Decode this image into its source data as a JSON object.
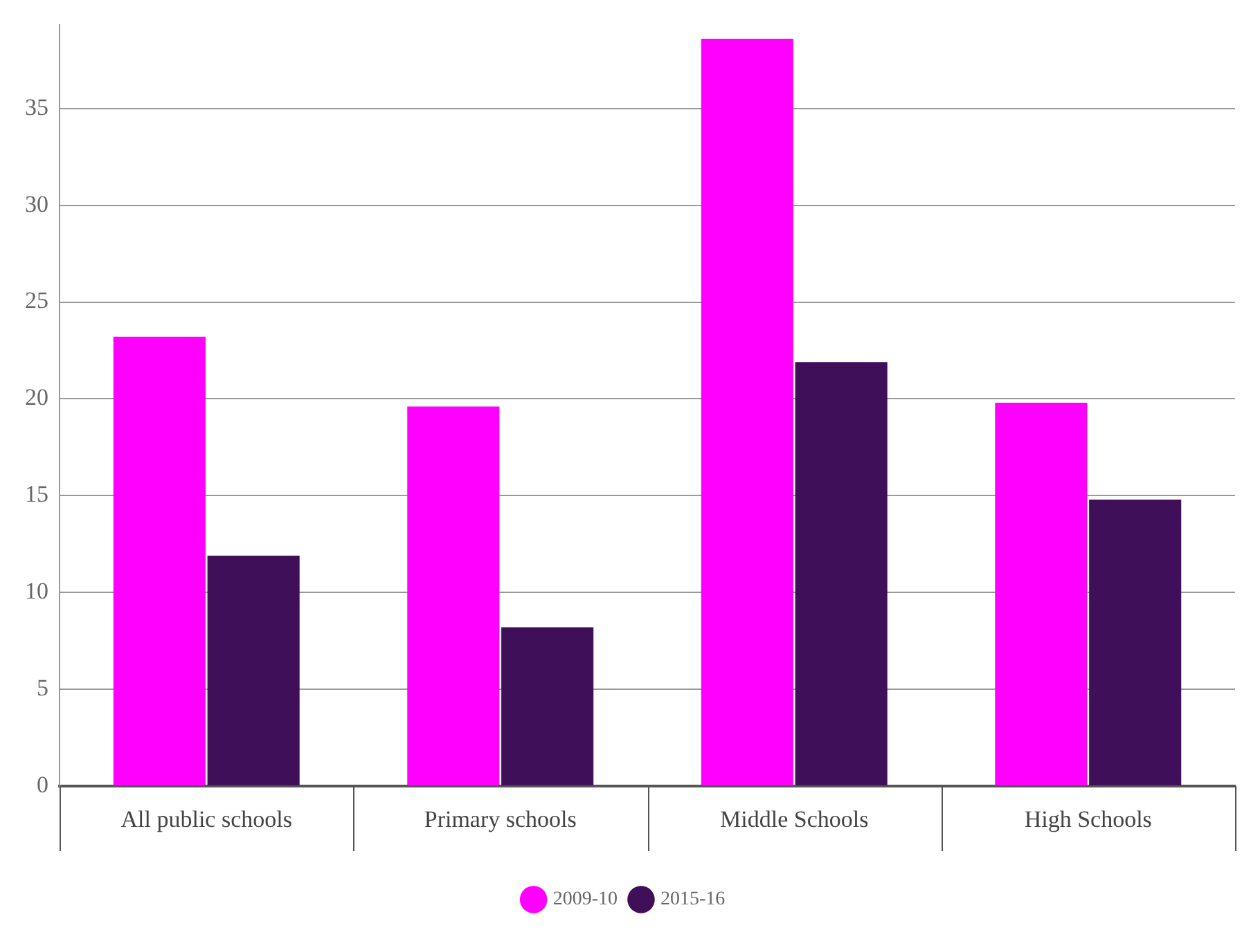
{
  "chart_data": {
    "type": "bar",
    "categories": [
      "All public schools",
      "Primary schools",
      "Middle Schools",
      "High Schools"
    ],
    "series": [
      {
        "name": "2009-10",
        "color": "#ff00ff",
        "values": [
          23.2,
          19.6,
          38.6,
          19.8
        ]
      },
      {
        "name": "2015-16",
        "color": "#3f0f5a",
        "values": [
          11.9,
          8.2,
          21.9,
          14.8
        ]
      }
    ],
    "ylim": [
      0,
      39.3
    ],
    "yticks": [
      0,
      5,
      10,
      15,
      20,
      25,
      30,
      35
    ],
    "grid": "y",
    "legend": "bottom"
  }
}
